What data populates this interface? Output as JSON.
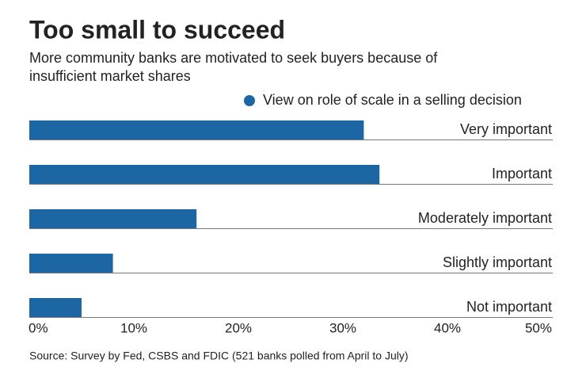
{
  "chart_data": {
    "type": "hbar",
    "title": "Too small to succeed",
    "subtitle": [
      "More community banks are motivated to seek buyers because of",
      "insufficient market shares"
    ],
    "source": "Source: Survey by Fed, CSBS and FDIC (521 banks polled from April to July)",
    "categories": [
      "Very important",
      "Important",
      "Moderately important",
      "Slightly important",
      "Not important"
    ],
    "series": [
      {
        "name": "View on role of scale in a selling decision",
        "color": "#1c67a3",
        "values": [
          32,
          33.5,
          16,
          8,
          5
        ]
      }
    ],
    "xlim": [
      0,
      50
    ],
    "xticks": [
      {
        "value": 0,
        "label": "0%"
      },
      {
        "value": 10,
        "label": "10%"
      },
      {
        "value": 20,
        "label": "20%"
      },
      {
        "value": 30,
        "label": "30%"
      },
      {
        "value": 40,
        "label": "40%"
      },
      {
        "value": 50,
        "label": "50%"
      }
    ],
    "grid": false
  }
}
